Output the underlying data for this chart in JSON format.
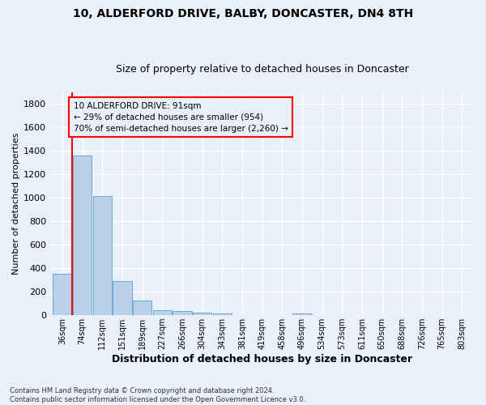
{
  "title": "10, ALDERFORD DRIVE, BALBY, DONCASTER, DN4 8TH",
  "subtitle": "Size of property relative to detached houses in Doncaster",
  "xlabel": "Distribution of detached houses by size in Doncaster",
  "ylabel": "Number of detached properties",
  "bin_labels": [
    "36sqm",
    "74sqm",
    "112sqm",
    "151sqm",
    "189sqm",
    "227sqm",
    "266sqm",
    "304sqm",
    "343sqm",
    "381sqm",
    "419sqm",
    "458sqm",
    "496sqm",
    "534sqm",
    "573sqm",
    "611sqm",
    "650sqm",
    "688sqm",
    "726sqm",
    "765sqm",
    "803sqm"
  ],
  "bar_heights": [
    355,
    1360,
    1015,
    290,
    125,
    40,
    33,
    23,
    18,
    0,
    0,
    0,
    18,
    0,
    0,
    0,
    0,
    0,
    0,
    0,
    0
  ],
  "bar_color": "#b8d0ea",
  "bar_edgecolor": "#6aaad4",
  "vline_color": "red",
  "vline_x": 0.5,
  "annotation_text": "10 ALDERFORD DRIVE: 91sqm\n← 29% of detached houses are smaller (954)\n70% of semi-detached houses are larger (2,260) →",
  "annotation_box_color": "red",
  "ylim": [
    0,
    1900
  ],
  "yticks": [
    0,
    200,
    400,
    600,
    800,
    1000,
    1200,
    1400,
    1600,
    1800
  ],
  "footnote": "Contains HM Land Registry data © Crown copyright and database right 2024.\nContains public sector information licensed under the Open Government Licence v3.0.",
  "background_color": "#eaf0f8",
  "grid_color": "#ffffff",
  "title_fontsize": 10,
  "subtitle_fontsize": 9,
  "xlabel_fontsize": 9,
  "ylabel_fontsize": 8
}
